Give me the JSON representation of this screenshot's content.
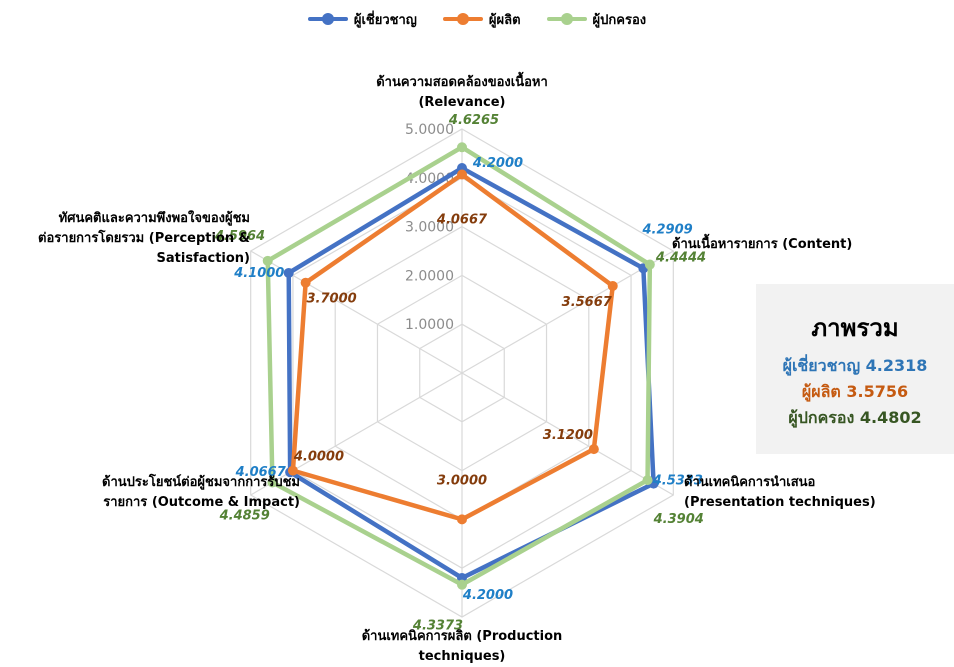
{
  "chart_data": {
    "type": "radar",
    "axes": [
      "ด้านความสอดคล้องของเนื้อหา (Relevance)",
      "ด้านเนื้อหารายการ (Content)",
      "ด้านเทคนิคการนำเสนอ (Presentation techniques)",
      "ด้านเทคนิคการผลิต (Production techniques)",
      "ด้านประโยชน์ต่อผู้ชมจากการรับชมรายการ (Outcome & Impact)",
      "ทัศนคติและความพึงพอใจของผู้ชมต่อรายการโดยรวม (Perception & Satisfaction)"
    ],
    "axis_lines": [
      [
        "ด้านความสอดคล้องของเนื้อหา",
        "(Relevance)"
      ],
      [
        "ด้านเนื้อหารายการ (Content)"
      ],
      [
        "ด้านเทคนิคการนำเสนอ",
        "(Presentation techniques)"
      ],
      [
        "ด้านเทคนิคการผลิต (Production",
        "techniques)"
      ],
      [
        "ด้านประโยชน์ต่อผู้ชมจากการรับชม",
        "รายการ (Outcome & Impact)"
      ],
      [
        "ทัศนคติและความพึงพอใจของผู้ชม",
        "ต่อรายการโดยรวม (Perception &",
        "Satisfaction)"
      ]
    ],
    "rlim": [
      0,
      5
    ],
    "rticks": [
      "1.0000",
      "2.0000",
      "3.0000",
      "4.0000",
      "5.0000"
    ],
    "series": [
      {
        "name": "ผู้เชี่ยวชาญ",
        "color": "#4472C4",
        "label_color": "#1f7fc7",
        "values": [
          4.2,
          4.2909,
          4.5333,
          4.2,
          4.0667,
          4.1
        ],
        "labels": [
          "4.2000",
          "4.2909",
          "4.5333",
          "4.2000",
          "4.0667",
          "4.1000"
        ]
      },
      {
        "name": "ผู้ผลิต",
        "color": "#ED7D31",
        "label_color": "#843c0c",
        "values": [
          4.0667,
          3.5667,
          3.12,
          3.0,
          4.0,
          3.7
        ],
        "labels": [
          "4.0667",
          "3.5667",
          "3.1200",
          "3.0000",
          "4.0000",
          "3.7000"
        ]
      },
      {
        "name": "ผู้ปกครอง",
        "color": "#A9D18E",
        "label_color": "#548235",
        "values": [
          4.6265,
          4.4444,
          4.3904,
          4.3373,
          4.4859,
          4.5964
        ],
        "labels": [
          "4.6265",
          "4.4444",
          "4.3904",
          "4.3373",
          "4.4859",
          "4.5964"
        ]
      }
    ],
    "legend_position": "top",
    "grid": true
  },
  "summary": {
    "title": "ภาพรวม",
    "lines": [
      "ผู้เชี่ยวชาญ 4.2318",
      "ผู้ผลิต 3.5756",
      "ผู้ปกครอง 4.4802"
    ],
    "colors": [
      "#2e75b6",
      "#c55a11",
      "#375623"
    ]
  }
}
